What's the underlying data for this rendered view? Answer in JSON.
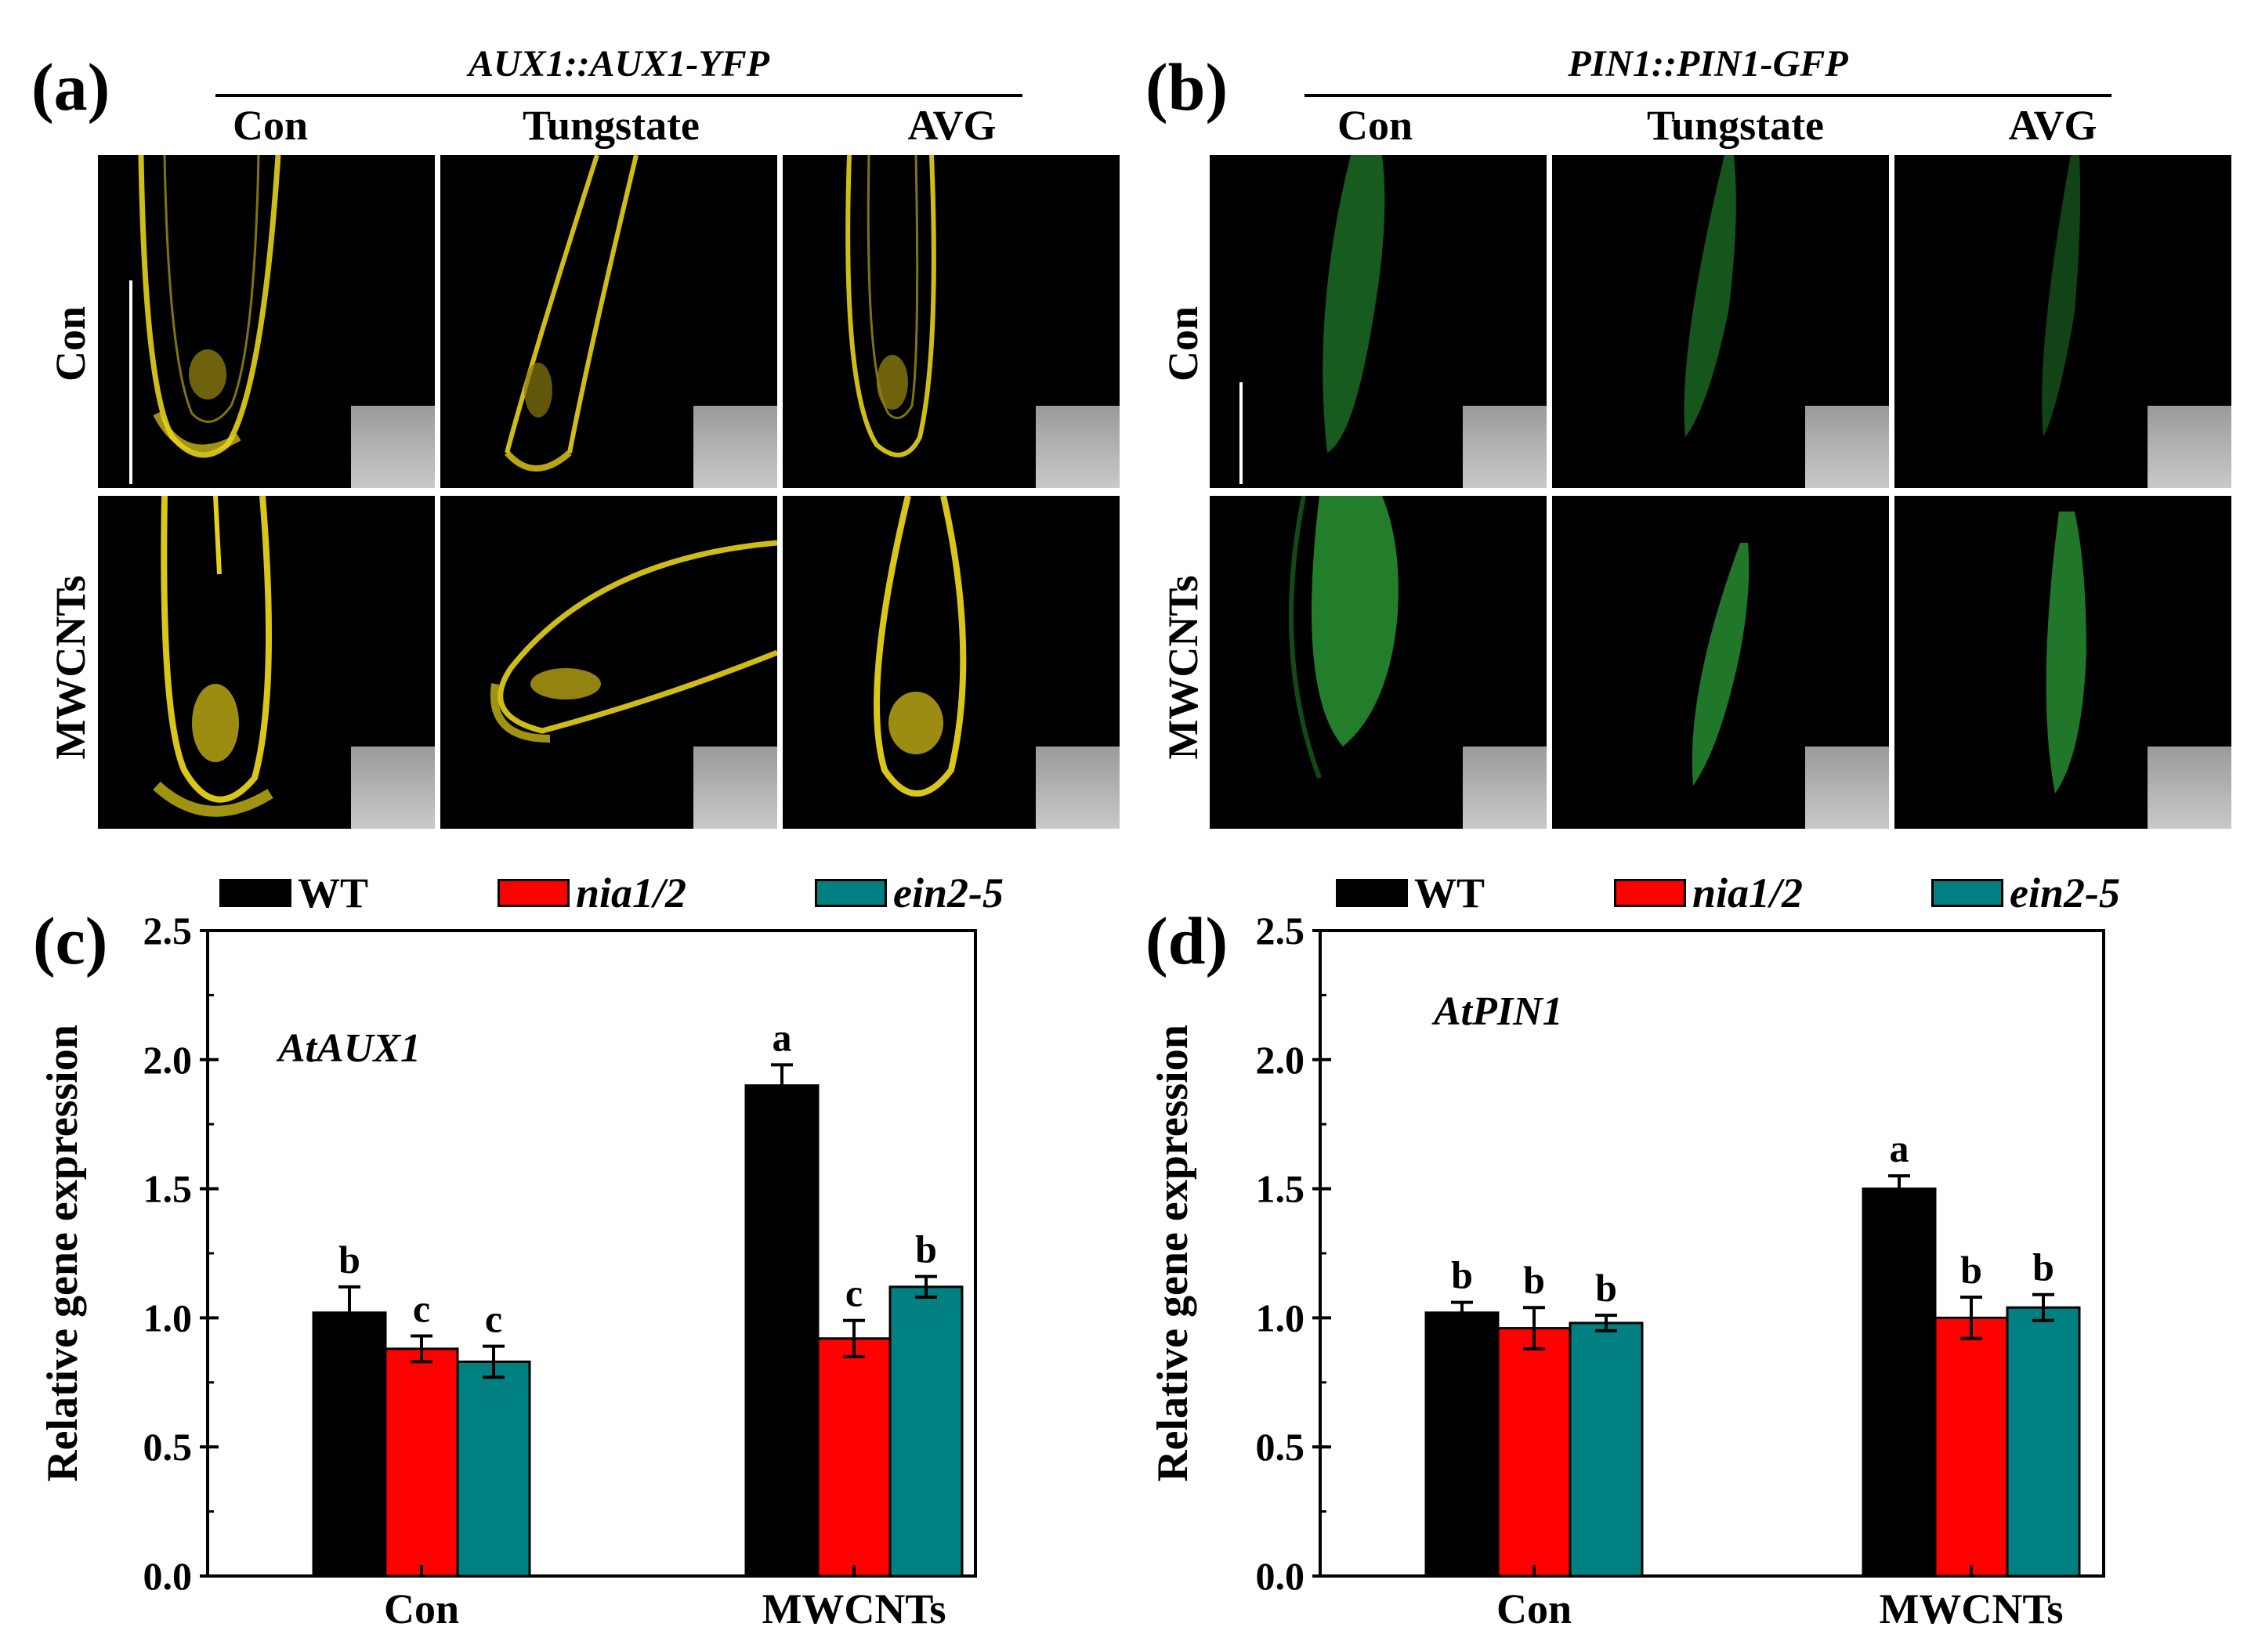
{
  "panels": {
    "a": {
      "letter": "(a)",
      "construct": "AUX1::AUX1-YFP",
      "columns": [
        "Con",
        "Tungstate",
        "AVG"
      ],
      "rows": [
        "Con",
        "MWCNTs"
      ],
      "fluor_color": "#e6d11a"
    },
    "b": {
      "letter": "(b)",
      "construct": "PIN1::PIN1-GFP",
      "columns": [
        "Con",
        "Tungstate",
        "AVG"
      ],
      "rows": [
        "Con",
        "MWCNTs"
      ],
      "fluor_color": "#2ea83a"
    },
    "c": {
      "letter": "(c)"
    },
    "d": {
      "letter": "(d)"
    }
  },
  "legend": [
    {
      "name": "WT",
      "color": "#000000",
      "italic": false
    },
    {
      "name": "nia1/2",
      "color": "#ff0000",
      "italic": true
    },
    {
      "name": "ein2-5",
      "color": "#008080",
      "italic": true
    }
  ],
  "chart_data": [
    {
      "type": "bar",
      "panel": "c",
      "gene": "AtAUX1",
      "categories": [
        "Con",
        "MWCNTs"
      ],
      "series": [
        {
          "name": "WT",
          "color": "#000000",
          "values": [
            1.02,
            1.9
          ],
          "errors": [
            0.1,
            0.08
          ],
          "letters": [
            "b",
            "a"
          ]
        },
        {
          "name": "nia1/2",
          "color": "#ff0000",
          "values": [
            0.88,
            0.92
          ],
          "errors": [
            0.05,
            0.07
          ],
          "letters": [
            "c",
            "c"
          ]
        },
        {
          "name": "ein2-5",
          "color": "#008080",
          "values": [
            0.83,
            1.12
          ],
          "errors": [
            0.06,
            0.04
          ],
          "letters": [
            "c",
            "b"
          ]
        }
      ],
      "ylabel": "Relative gene expression",
      "ylim": [
        0,
        2.5
      ],
      "yticks": [
        "0.0",
        "0.5",
        "1.0",
        "1.5",
        "2.0",
        "2.5"
      ]
    },
    {
      "type": "bar",
      "panel": "d",
      "gene": "AtPIN1",
      "categories": [
        "Con",
        "MWCNTs"
      ],
      "series": [
        {
          "name": "WT",
          "color": "#000000",
          "values": [
            1.02,
            1.5
          ],
          "errors": [
            0.04,
            0.05
          ],
          "letters": [
            "b",
            "a"
          ]
        },
        {
          "name": "nia1/2",
          "color": "#ff0000",
          "values": [
            0.96,
            1.0
          ],
          "errors": [
            0.08,
            0.08
          ],
          "letters": [
            "b",
            "b"
          ]
        },
        {
          "name": "ein2-5",
          "color": "#008080",
          "values": [
            0.98,
            1.04
          ],
          "errors": [
            0.03,
            0.05
          ],
          "letters": [
            "b",
            "b"
          ]
        }
      ],
      "ylabel": "Relative gene expression",
      "ylim": [
        0,
        2.5
      ],
      "yticks": [
        "0.0",
        "0.5",
        "1.0",
        "1.5",
        "2.0",
        "2.5"
      ]
    }
  ]
}
